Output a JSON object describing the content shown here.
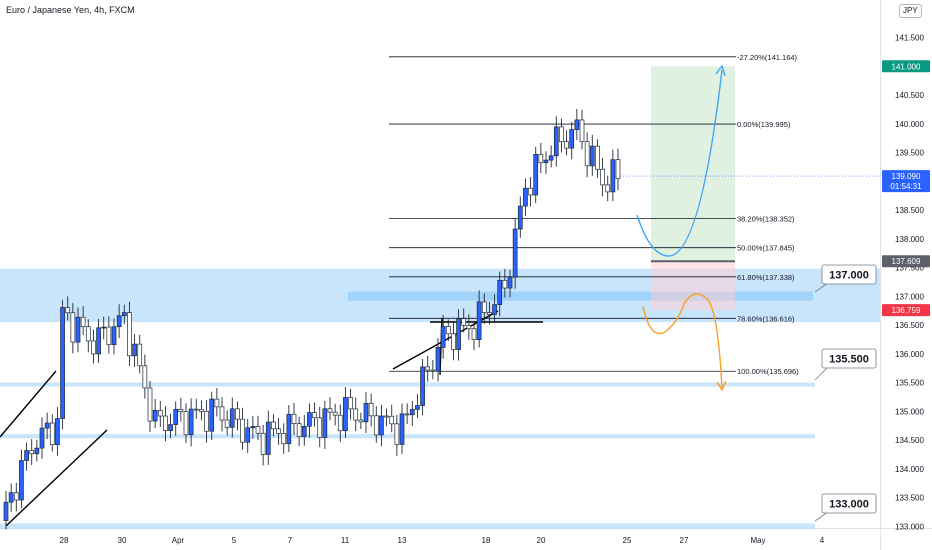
{
  "header": {
    "title": "Euro / Japanese Yen, 4h, FXCM",
    "currency": "JPY"
  },
  "chart_data": {
    "type": "candlestick",
    "title": "Euro / Japanese Yen, 4h, FXCM",
    "ylim": [
      132.9,
      142.05
    ],
    "y_ticks": [
      "133.000",
      "133.500",
      "134.000",
      "134.500",
      "135.000",
      "135.500",
      "136.000",
      "136.500",
      "137.000",
      "137.500",
      "138.000",
      "138.500",
      "139.500",
      "140.000",
      "140.500",
      "141.500"
    ],
    "x_ticks": [
      "28",
      "30",
      "Apr",
      "5",
      "7",
      "11",
      "13",
      "18",
      "20",
      "25",
      "27",
      "May",
      "4"
    ],
    "price_tags": [
      {
        "value": "141.000",
        "color": "#089981"
      },
      {
        "value": "139.090",
        "sub": "01:54:31",
        "color": "#2962ff"
      },
      {
        "value": "137.609",
        "color": "#5d606b"
      },
      {
        "value": "136.759",
        "color": "#f23645"
      }
    ],
    "zones": [
      {
        "label": "137.000",
        "low": 136.55,
        "high": 137.48
      },
      {
        "label": "135.500",
        "low": 135.43,
        "high": 135.5
      },
      {
        "label": "",
        "low": 134.53,
        "high": 134.6
      },
      {
        "label": "133.000",
        "low": 132.95,
        "high": 133.05
      }
    ],
    "fib_levels": [
      {
        "label": "-27.20%(141.164)",
        "price": 141.164
      },
      {
        "label": "0.00%(139.995)",
        "price": 139.995
      },
      {
        "label": "38.20%(138.352)",
        "price": 138.352
      },
      {
        "label": "50.00%(137.845)",
        "price": 137.845
      },
      {
        "label": "61.80%(137.338)",
        "price": 137.338
      },
      {
        "label": "78.60%(136.616)",
        "price": 136.616
      },
      {
        "label": "100.00%(135.696)",
        "price": 135.696
      }
    ],
    "position": {
      "entry": 137.609,
      "target": 141.0,
      "stop": 136.759
    },
    "last_price": 139.09
  }
}
